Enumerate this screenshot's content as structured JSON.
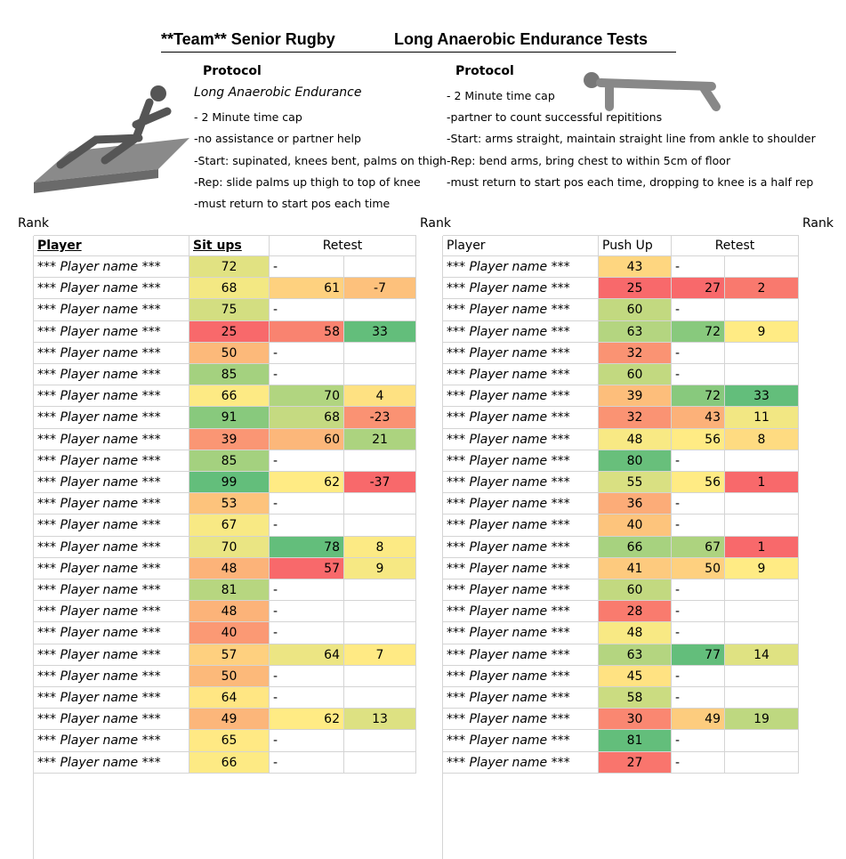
{
  "title": {
    "team": "**Team** Senior Rugby",
    "test": "Long Anaerobic Endurance Tests"
  },
  "protocols": [
    {
      "heading": "Protocol",
      "subheading": "Long Anaerobic Endurance",
      "lines": [
        "- 2 Minute time cap",
        "-no assistance or partner help",
        "-Start: supinated, knees bent, palms on thigh",
        "-Rep: slide palms up thigh to top of knee",
        "-must return to start pos each time"
      ]
    },
    {
      "heading": "Protocol",
      "lines": [
        "- 2 Minute time cap",
        "-partner to count successful repititions",
        "-Start: arms straight, maintain straight line from ankle to shoulder",
        "-Rep: bend arms, bring chest to within 5cm of floor",
        "-must return to start pos each time, dropping to knee is a half rep"
      ]
    }
  ],
  "rank_labels": [
    "Rank",
    "Rank",
    "Rank"
  ],
  "tables": [
    {
      "headers": {
        "player": "Player",
        "score": "Sit ups",
        "retest": "Retest"
      },
      "rows": [
        [
          "*** Player name ***",
          72,
          "-"
        ],
        [
          "*** Player name ***",
          68,
          61,
          -7
        ],
        [
          "*** Player name ***",
          75,
          "-"
        ],
        [
          "*** Player name ***",
          25,
          58,
          33
        ],
        [
          "*** Player name ***",
          50,
          "-"
        ],
        [
          "*** Player name ***",
          85,
          "-"
        ],
        [
          "*** Player name ***",
          66,
          70,
          4
        ],
        [
          "*** Player name ***",
          91,
          68,
          -23
        ],
        [
          "*** Player name ***",
          39,
          60,
          21
        ],
        [
          "*** Player name ***",
          85,
          "-"
        ],
        [
          "*** Player name ***",
          99,
          62,
          -37
        ],
        [
          "*** Player name ***",
          53,
          "-"
        ],
        [
          "*** Player name ***",
          67,
          "-"
        ],
        [
          "*** Player name ***",
          70,
          78,
          8
        ],
        [
          "*** Player name ***",
          48,
          57,
          9
        ],
        [
          "*** Player name ***",
          81,
          "-"
        ],
        [
          "*** Player name ***",
          48,
          "-"
        ],
        [
          "*** Player name ***",
          40,
          "-"
        ],
        [
          "*** Player name ***",
          57,
          64,
          7
        ],
        [
          "*** Player name ***",
          50,
          "-"
        ],
        [
          "*** Player name ***",
          64,
          "-"
        ],
        [
          "*** Player name ***",
          49,
          62,
          13
        ],
        [
          "*** Player name ***",
          65,
          "-"
        ],
        [
          "*** Player name ***",
          66,
          "-"
        ]
      ]
    },
    {
      "headers": {
        "player": "Player",
        "score": "Push Up",
        "retest": "Retest"
      },
      "rows": [
        [
          "*** Player name ***",
          43,
          "-"
        ],
        [
          "*** Player name ***",
          25,
          27,
          2
        ],
        [
          "*** Player name ***",
          60,
          "-"
        ],
        [
          "*** Player name ***",
          63,
          72,
          9
        ],
        [
          "*** Player name ***",
          32,
          "-"
        ],
        [
          "*** Player name ***",
          60,
          "-"
        ],
        [
          "*** Player name ***",
          39,
          72,
          33
        ],
        [
          "*** Player name ***",
          32,
          43,
          11
        ],
        [
          "*** Player name ***",
          48,
          56,
          8
        ],
        [
          "*** Player name ***",
          80,
          "-"
        ],
        [
          "*** Player name ***",
          55,
          56,
          1
        ],
        [
          "*** Player name ***",
          36,
          "-"
        ],
        [
          "*** Player name ***",
          40,
          "-"
        ],
        [
          "*** Player name ***",
          66,
          67,
          1
        ],
        [
          "*** Player name ***",
          41,
          50,
          9
        ],
        [
          "*** Player name ***",
          60,
          "-"
        ],
        [
          "*** Player name ***",
          28,
          "-"
        ],
        [
          "*** Player name ***",
          48,
          "-"
        ],
        [
          "*** Player name ***",
          63,
          77,
          14
        ],
        [
          "*** Player name ***",
          45,
          "-"
        ],
        [
          "*** Player name ***",
          58,
          "-"
        ],
        [
          "*** Player name ***",
          30,
          49,
          19
        ],
        [
          "*** Player name ***",
          81,
          "-"
        ],
        [
          "*** Player name ***",
          27,
          "-"
        ]
      ]
    }
  ]
}
